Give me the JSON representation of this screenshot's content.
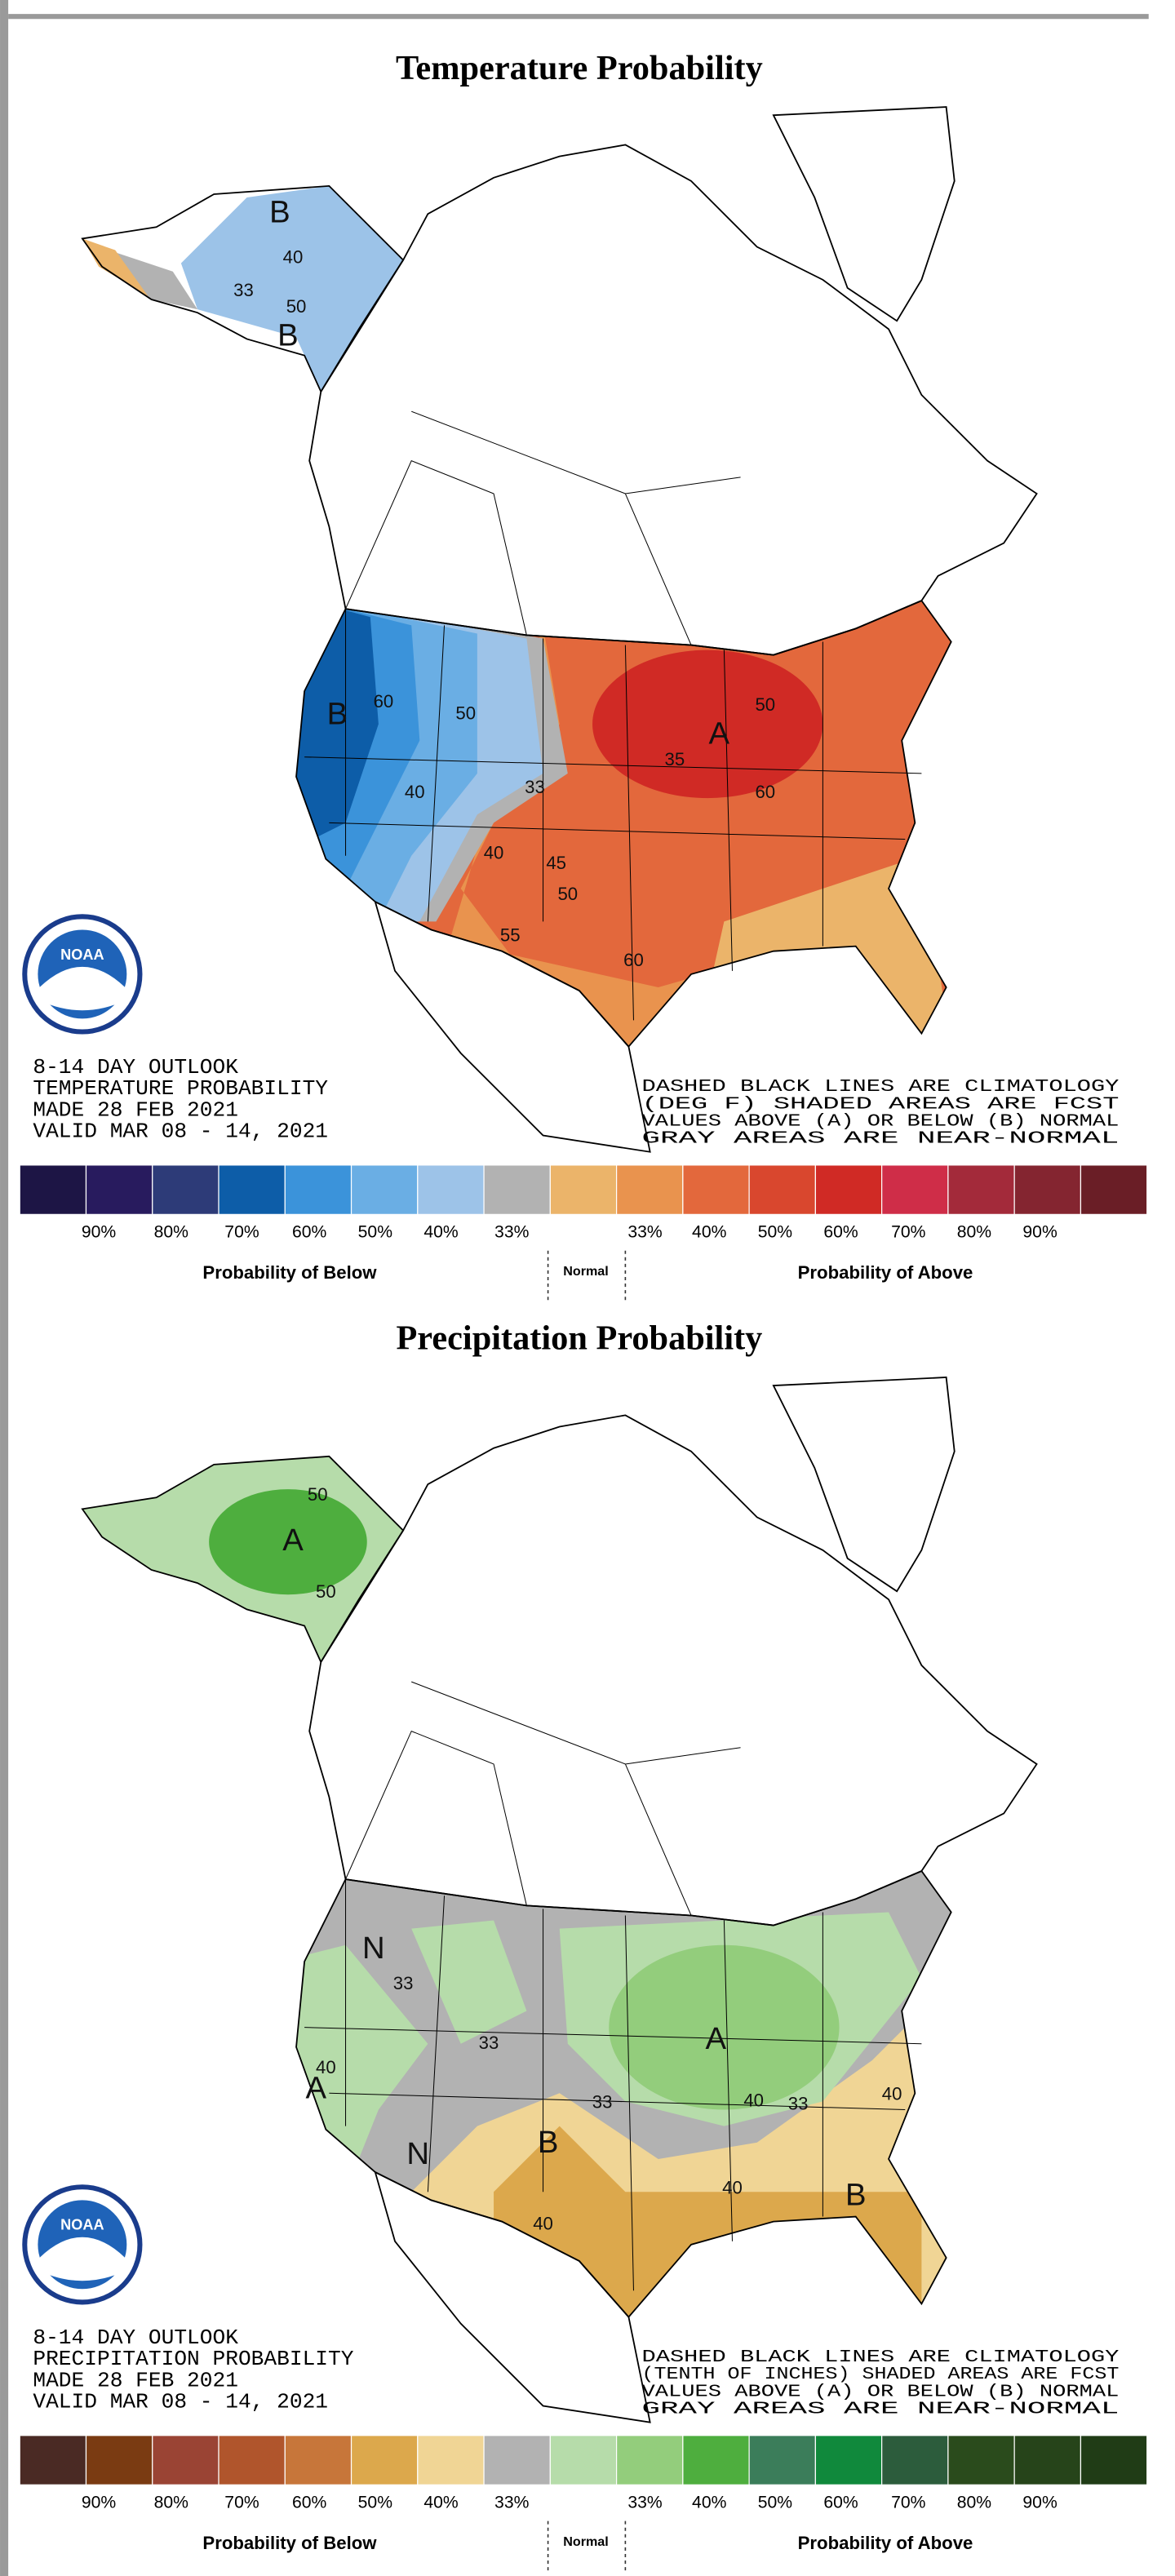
{
  "panels": [
    {
      "title": "Temperature Probability",
      "outlook": [
        "8-14 DAY OUTLOOK",
        "TEMPERATURE PROBABILITY",
        "MADE  28 FEB 2021",
        "VALID  MAR 08 - 14, 2021"
      ],
      "notes": [
        "DASHED BLACK LINES ARE CLIMATOLOGY",
        "(DEG F) SHADED AREAS ARE FCST",
        "VALUES ABOVE (A) OR BELOW (B) NORMAL",
        "GRAY AREAS ARE NEAR-NORMAL"
      ],
      "logo": "NOAA",
      "map_labels": [
        "B",
        "50",
        "33",
        "40",
        "B",
        "B",
        "60",
        "50",
        "40",
        "33",
        "40",
        "45",
        "50",
        "55",
        "60",
        "A",
        "35",
        "60",
        "50"
      ],
      "legend": {
        "colors": [
          "#1d1545",
          "#281b5e",
          "#2d3b78",
          "#0d5da8",
          "#3b93da",
          "#6aaee4",
          "#9dc3e8",
          "#b2b2b2",
          "#ebb46a",
          "#e9934e",
          "#e3683c",
          "#d9472e",
          "#d02a25",
          "#cf2d48",
          "#a32a3a",
          "#842530",
          "#6a1e26"
        ],
        "labels": [
          "90%",
          "80%",
          "70%",
          "60%",
          "50%",
          "40%",
          "33%",
          "33%",
          "40%",
          "50%",
          "60%",
          "70%",
          "80%",
          "90%"
        ],
        "below": "Probability of Below",
        "normal": "Normal",
        "above": "Probability of Above"
      }
    },
    {
      "title": "Precipitation Probability",
      "outlook": [
        "8-14 DAY OUTLOOK",
        "PRECIPITATION PROBABILITY",
        "MADE  28 FEB 2021",
        "VALID  MAR 08 - 14, 2021"
      ],
      "notes": [
        "DASHED BLACK LINES ARE CLIMATOLOGY",
        "(TENTH OF INCHES) SHADED AREAS ARE FCST",
        "VALUES ABOVE (A) OR BELOW (B) NORMAL",
        "GRAY AREAS ARE NEAR-NORMAL"
      ],
      "logo": "NOAA",
      "map_labels": [
        "A",
        "50",
        "50",
        "N",
        "33",
        "40",
        "A",
        "33",
        "A",
        "33",
        "40",
        "33",
        "N",
        "B",
        "40",
        "40",
        "40",
        "B"
      ],
      "legend": {
        "colors": [
          "#4a2a24",
          "#7a3b12",
          "#9a4434",
          "#b0552c",
          "#c7763a",
          "#dca84c",
          "#f0d595",
          "#b2b2b2",
          "#b6dcaa",
          "#93cd7c",
          "#4eae3e",
          "#3b7d5a",
          "#10893c",
          "#2c5c3c",
          "#2a4b1c",
          "#26441a",
          "#203c16"
        ],
        "labels": [
          "90%",
          "80%",
          "70%",
          "60%",
          "50%",
          "40%",
          "33%",
          "33%",
          "40%",
          "50%",
          "60%",
          "70%",
          "80%",
          "90%"
        ],
        "below": "Probability of Below",
        "normal": "Normal",
        "above": "Probability of Above"
      }
    }
  ]
}
